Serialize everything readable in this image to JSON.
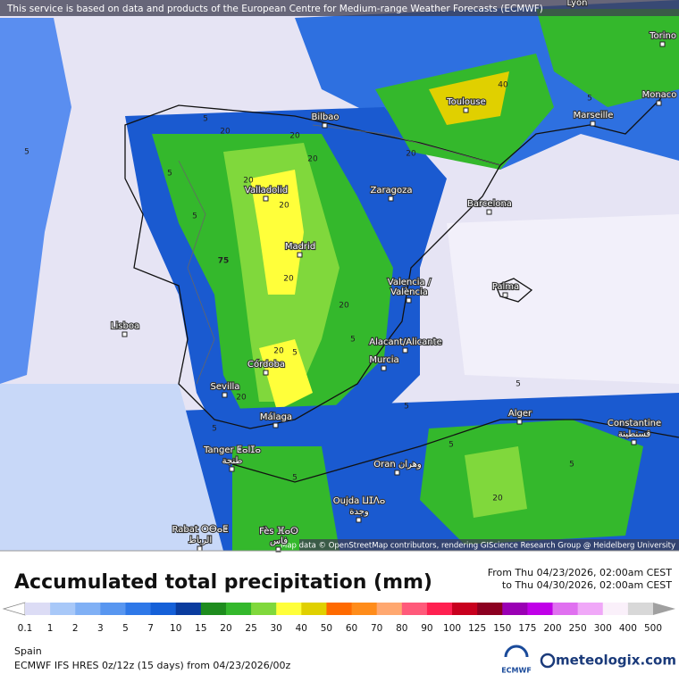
{
  "header": {
    "notice": "This service is based on data and products of the European Centre for Medium-range Weather Forecasts (ECMWF)"
  },
  "map": {
    "attribution": "Map data © OpenStreetMap contributors, rendering GIScience Research Group @ Heidelberg University",
    "places": [
      "Lyon",
      "Torino",
      "Monaco",
      "Marseille",
      "Toulouse",
      "Bilbao",
      "Zaragoza",
      "Barcelona",
      "Valladolid",
      "Madrid",
      "Valencia /",
      "València",
      "Palma",
      "Lisboa",
      "Alacant/Alicante",
      "Murcia",
      "Córdoba",
      "Sevilla",
      "Málaga",
      "Alger",
      "Constantine",
      "قسنطينة",
      "Tanger ⵟⴰⵏⵊⴰ",
      "طنجة",
      "Oran وهران",
      "Oujda ⵡⵊⴷⴰ",
      "وجدة",
      "Rabat ⵔⴱⴰⵟ",
      "الرباط",
      "Fès ⴼⴰⵙ",
      "فاس"
    ],
    "contour_labels": [
      "75",
      "40",
      "20",
      "20",
      "20",
      "20",
      "20",
      "20",
      "20",
      "20",
      "20",
      "20",
      "20",
      "5",
      "5",
      "5",
      "5",
      "5",
      "5",
      "5",
      "5",
      "5",
      "5",
      "5",
      "5",
      "5"
    ]
  },
  "legend": {
    "title": "Accumulated total precipitation (mm)",
    "labels": [
      "0.1",
      "1",
      "2",
      "3",
      "5",
      "7",
      "10",
      "15",
      "20",
      "25",
      "30",
      "40",
      "50",
      "60",
      "70",
      "80",
      "90",
      "100",
      "125",
      "150",
      "175",
      "200",
      "250",
      "300",
      "400",
      "500"
    ],
    "colors": [
      "#ffffff",
      "#dcdcf5",
      "#a8c8f8",
      "#80b0f5",
      "#5896f0",
      "#2e78e8",
      "#1560d8",
      "#0a3c9e",
      "#1e8c1e",
      "#34b82c",
      "#80d83c",
      "#ffff3a",
      "#e0d000",
      "#ff6a00",
      "#ff8c1a",
      "#ffa870",
      "#ff5a7a",
      "#ff2050",
      "#c8001e",
      "#8c0020",
      "#9a00b4",
      "#c000e8",
      "#e070f0",
      "#f0a8f8",
      "#faf0fa",
      "#d8d8d8",
      "#a0a0a0"
    ]
  },
  "footer": {
    "period_from": "From Thu 04/23/2026, 02:00am CEST",
    "period_to": "to Thu 04/30/2026, 02:00am CEST",
    "region": "Spain",
    "model": "ECMWF IFS HRES 0z/12z (15 days) from  04/23/2026/00z",
    "ecmwf_logo": "ECMWF",
    "brand": "meteologix.com"
  }
}
